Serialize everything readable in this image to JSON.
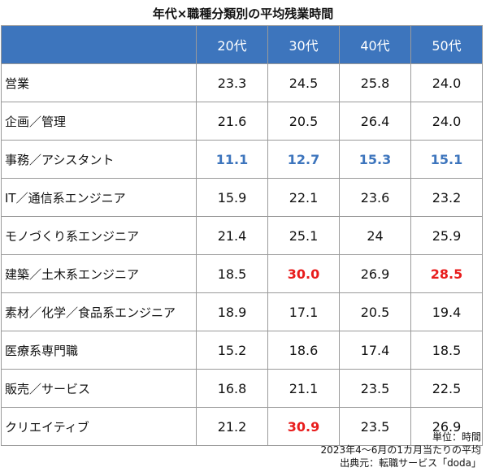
{
  "chart_data": {
    "type": "table",
    "title": "年代×職種分類別の平均残業時間",
    "columns": [
      "20代",
      "30代",
      "40代",
      "50代"
    ],
    "rows": [
      {
        "category": "営業",
        "values": [
          "23.3",
          "24.5",
          "25.8",
          "24.0"
        ],
        "highlight_row": false,
        "red": [
          false,
          false,
          false,
          false
        ]
      },
      {
        "category": "企画／管理",
        "values": [
          "21.6",
          "20.5",
          "26.4",
          "24.0"
        ],
        "highlight_row": false,
        "red": [
          false,
          false,
          false,
          false
        ]
      },
      {
        "category": "事務／アシスタント",
        "values": [
          "11.1",
          "12.7",
          "15.3",
          "15.1"
        ],
        "highlight_row": true,
        "red": [
          false,
          false,
          false,
          false
        ]
      },
      {
        "category": "IT／通信系エンジニア",
        "values": [
          "15.9",
          "22.1",
          "23.6",
          "23.2"
        ],
        "highlight_row": false,
        "red": [
          false,
          false,
          false,
          false
        ]
      },
      {
        "category": "モノづくり系エンジニア",
        "values": [
          "21.4",
          "25.1",
          "24",
          "25.9"
        ],
        "highlight_row": false,
        "red": [
          false,
          false,
          false,
          false
        ]
      },
      {
        "category": "建築／土木系エンジニア",
        "values": [
          "18.5",
          "30.0",
          "26.9",
          "28.5"
        ],
        "highlight_row": false,
        "red": [
          false,
          true,
          false,
          true
        ]
      },
      {
        "category": "素材／化学／食品系エンジニア",
        "values": [
          "18.9",
          "17.1",
          "20.5",
          "19.4"
        ],
        "highlight_row": false,
        "red": [
          false,
          false,
          false,
          false
        ]
      },
      {
        "category": "医療系専門職",
        "values": [
          "15.2",
          "18.6",
          "17.4",
          "18.5"
        ],
        "highlight_row": false,
        "red": [
          false,
          false,
          false,
          false
        ]
      },
      {
        "category": "販売／サービス",
        "values": [
          "16.8",
          "21.1",
          "23.5",
          "22.5"
        ],
        "highlight_row": false,
        "red": [
          false,
          false,
          false,
          false
        ]
      },
      {
        "category": "クリエイティブ",
        "values": [
          "21.2",
          "30.9",
          "23.5",
          "26.9"
        ],
        "highlight_row": false,
        "red": [
          false,
          true,
          false,
          false
        ]
      }
    ],
    "notes": [
      "単位：時間",
      "2023年4～6月の1カ月当たりの平均",
      "出典元：転職サービス「doda」"
    ],
    "colors": {
      "header_bg": "#3d75bd",
      "highlight_text": "#3d75bd",
      "max_text": "#e81c1c"
    }
  }
}
